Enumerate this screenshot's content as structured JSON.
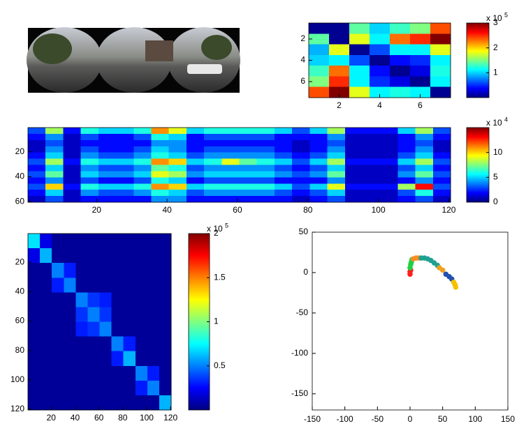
{
  "chart_data": [
    {
      "type": "heatmap",
      "xbins": [
        0.5,
        1.5,
        2.5,
        3.5,
        4.5,
        5.5,
        6.5,
        7.5
      ],
      "ybins": [
        0.5,
        1.5,
        2.5,
        3.5,
        4.5,
        5.5,
        6.5,
        7.5
      ],
      "z": [
        [
          0.05,
          0.05,
          1.4,
          1.0,
          1.3,
          1.5,
          2.4
        ],
        [
          1.4,
          0.05,
          1.8,
          1.1,
          2.3,
          2.5,
          3.0
        ],
        [
          0.9,
          1.8,
          0.05,
          0.6,
          1.1,
          1.1,
          1.8
        ],
        [
          1.0,
          1.1,
          0.6,
          0.05,
          0.4,
          0.5,
          1.1
        ],
        [
          1.3,
          2.3,
          1.1,
          0.4,
          0.05,
          0.3,
          1.2
        ],
        [
          1.5,
          2.5,
          1.1,
          0.5,
          0.3,
          0.05,
          1.1
        ],
        [
          2.4,
          3.0,
          1.8,
          1.1,
          1.2,
          1.1,
          0.05
        ]
      ],
      "xlim": [
        0.5,
        7.5
      ],
      "ylim": [
        0.5,
        7.5
      ],
      "xticks": [
        2,
        4,
        6
      ],
      "yticks": [
        2,
        4,
        6
      ],
      "clim": [
        0,
        3
      ],
      "colorbar_ticks": [
        1,
        2,
        3
      ],
      "colorbar_multiplier": "x 10",
      "colorbar_exponent": "5"
    },
    {
      "type": "heatmap",
      "xbins": [
        0.5,
        5.5,
        10.5,
        15.5,
        20.5,
        25.5,
        30.5,
        35.5,
        40.5,
        45.5,
        50.5,
        55.5,
        60.5,
        65.5,
        70.5,
        75.5,
        80.5,
        85.5,
        90.5,
        95.5,
        100.5,
        105.5,
        110.5,
        115.5,
        120.5
      ],
      "ybins": [
        0.5,
        5.5,
        10.5,
        15.5,
        20.5,
        25.5,
        30.5,
        35.5,
        40.5,
        45.5,
        50.5,
        55.5,
        60.5
      ],
      "z": [
        [
          3,
          8,
          2,
          6,
          5,
          5,
          6,
          11,
          9,
          5,
          6,
          6,
          6,
          6,
          5,
          3,
          5,
          8,
          2,
          2,
          2,
          5,
          8,
          3
        ],
        [
          2,
          4,
          1,
          3,
          2,
          2,
          3,
          6,
          5,
          2,
          3,
          3,
          3,
          3,
          2,
          2,
          2,
          4,
          1,
          1,
          1,
          2,
          4,
          2
        ],
        [
          1,
          3,
          1,
          2,
          2,
          2,
          2,
          4,
          4,
          2,
          2,
          2,
          2,
          2,
          2,
          1,
          2,
          3,
          1,
          1,
          1,
          2,
          3,
          1
        ],
        [
          1,
          4,
          1,
          3,
          2,
          2,
          3,
          5,
          4,
          2,
          3,
          3,
          3,
          3,
          2,
          1,
          2,
          4,
          1,
          1,
          1,
          2,
          4,
          1
        ],
        [
          2,
          5,
          1,
          4,
          3,
          3,
          4,
          6,
          5,
          3,
          4,
          4,
          4,
          4,
          3,
          2,
          3,
          5,
          1,
          1,
          1,
          3,
          5,
          2
        ],
        [
          3,
          8,
          2,
          6,
          5,
          5,
          6,
          11,
          10,
          5,
          6,
          9,
          7,
          6,
          5,
          3,
          5,
          8,
          2,
          2,
          2,
          5,
          8,
          3
        ],
        [
          2,
          5,
          1,
          4,
          3,
          3,
          4,
          7,
          6,
          3,
          4,
          4,
          4,
          4,
          3,
          2,
          3,
          5,
          1,
          1,
          1,
          3,
          5,
          2
        ],
        [
          3,
          7,
          1,
          5,
          4,
          4,
          5,
          9,
          8,
          4,
          5,
          5,
          5,
          5,
          4,
          3,
          4,
          7,
          1,
          1,
          1,
          4,
          7,
          3
        ],
        [
          2,
          4,
          1,
          3,
          2,
          2,
          3,
          6,
          5,
          2,
          3,
          3,
          3,
          3,
          2,
          2,
          2,
          4,
          1,
          1,
          1,
          2,
          4,
          2
        ],
        [
          3,
          10,
          2,
          6,
          5,
          5,
          6,
          11,
          10,
          5,
          6,
          6,
          6,
          6,
          5,
          3,
          5,
          9,
          2,
          2,
          2,
          8,
          13,
          3
        ],
        [
          2,
          5,
          1,
          4,
          3,
          3,
          4,
          6,
          5,
          3,
          4,
          4,
          4,
          4,
          3,
          2,
          3,
          5,
          1,
          1,
          1,
          3,
          6,
          2
        ],
        [
          1,
          3,
          1,
          2,
          2,
          2,
          2,
          4,
          4,
          2,
          2,
          2,
          2,
          2,
          2,
          1,
          2,
          3,
          1,
          1,
          1,
          2,
          3,
          1
        ]
      ],
      "xlim": [
        0.5,
        120.5
      ],
      "ylim": [
        0.5,
        60.5
      ],
      "xticks": [
        20,
        40,
        60,
        80,
        100,
        120
      ],
      "yticks": [
        20,
        40,
        60
      ],
      "clim": [
        0,
        15
      ],
      "colorbar_ticks": [
        0,
        5,
        10
      ],
      "colorbar_multiplier": "x 10",
      "colorbar_exponent": "4"
    },
    {
      "type": "heatmap",
      "xbins": [
        0.5,
        10.5,
        20.5,
        30.5,
        40.5,
        50.5,
        60.5,
        70.5,
        80.5,
        90.5,
        100.5,
        110.5,
        120.5
      ],
      "ybins": [
        0.5,
        10.5,
        20.5,
        30.5,
        40.5,
        50.5,
        60.5,
        70.5,
        80.5,
        90.5,
        100.5,
        110.5,
        120.5
      ],
      "z": [
        [
          0.7,
          0.2,
          0.05,
          0.05,
          0.05,
          0.05,
          0.05,
          0.05,
          0.05,
          0.05,
          0.05,
          0.05
        ],
        [
          0.2,
          0.6,
          0.05,
          0.05,
          0.05,
          0.05,
          0.05,
          0.05,
          0.05,
          0.05,
          0.05,
          0.05
        ],
        [
          0.05,
          0.05,
          0.5,
          0.3,
          0.05,
          0.05,
          0.05,
          0.05,
          0.05,
          0.05,
          0.05,
          0.05
        ],
        [
          0.05,
          0.05,
          0.3,
          0.5,
          0.05,
          0.05,
          0.05,
          0.05,
          0.05,
          0.05,
          0.05,
          0.05
        ],
        [
          0.05,
          0.05,
          0.05,
          0.05,
          0.5,
          0.35,
          0.3,
          0.05,
          0.05,
          0.05,
          0.05,
          0.05
        ],
        [
          0.05,
          0.05,
          0.05,
          0.05,
          0.35,
          0.5,
          0.35,
          0.05,
          0.05,
          0.05,
          0.05,
          0.05
        ],
        [
          0.05,
          0.05,
          0.05,
          0.05,
          0.3,
          0.35,
          0.5,
          0.05,
          0.05,
          0.05,
          0.05,
          0.05
        ],
        [
          0.05,
          0.05,
          0.05,
          0.05,
          0.05,
          0.05,
          0.05,
          0.5,
          0.3,
          0.05,
          0.05,
          0.05
        ],
        [
          0.05,
          0.05,
          0.05,
          0.05,
          0.05,
          0.05,
          0.05,
          0.3,
          0.6,
          0.05,
          0.05,
          0.05
        ],
        [
          0.05,
          0.05,
          0.05,
          0.05,
          0.05,
          0.05,
          0.05,
          0.05,
          0.05,
          0.5,
          0.3,
          0.05
        ],
        [
          0.05,
          0.05,
          0.05,
          0.05,
          0.05,
          0.05,
          0.05,
          0.05,
          0.05,
          0.3,
          0.5,
          0.05
        ],
        [
          0.05,
          0.05,
          0.05,
          0.05,
          0.05,
          0.05,
          0.05,
          0.05,
          0.05,
          0.05,
          0.05,
          0.6
        ]
      ],
      "xlim": [
        0.5,
        120.5
      ],
      "ylim": [
        0.5,
        120.5
      ],
      "xticks": [
        20,
        40,
        60,
        80,
        100,
        120
      ],
      "yticks": [
        20,
        40,
        60,
        80,
        100,
        120
      ],
      "clim": [
        0,
        2
      ],
      "colorbar_ticks": [
        0.5,
        1,
        1.5,
        2
      ],
      "colorbar_multiplier": "x 10",
      "colorbar_exponent": "5"
    },
    {
      "type": "scatter",
      "series": [
        {
          "color": "#ff2020",
          "x": [
            0,
            0,
            1
          ],
          "y": [
            -2,
            1,
            3
          ]
        },
        {
          "color": "#20d040",
          "x": [
            0,
            1,
            2,
            3
          ],
          "y": [
            6,
            10,
            13,
            16
          ]
        },
        {
          "color": "#ff8c20",
          "x": [
            5,
            9,
            13
          ],
          "y": [
            17,
            18,
            18
          ]
        },
        {
          "color": "#20a090",
          "x": [
            17,
            22,
            27,
            32,
            37,
            42
          ],
          "y": [
            18,
            18,
            17,
            15,
            12,
            9
          ]
        },
        {
          "color": "#f0a020",
          "x": [
            45,
            50
          ],
          "y": [
            6,
            3
          ]
        },
        {
          "color": "#2050b0",
          "x": [
            55,
            60,
            64
          ],
          "y": [
            -2,
            -5,
            -8
          ]
        },
        {
          "color": "#f5c000",
          "x": [
            67,
            69,
            70
          ],
          "y": [
            -12,
            -15,
            -18
          ]
        }
      ],
      "xlim": [
        -150,
        150
      ],
      "ylim": [
        -170,
        50
      ],
      "xticks": [
        -150,
        -100,
        -50,
        0,
        50,
        100,
        150
      ],
      "yticks": [
        -150,
        -100,
        -50,
        0,
        50
      ]
    }
  ]
}
